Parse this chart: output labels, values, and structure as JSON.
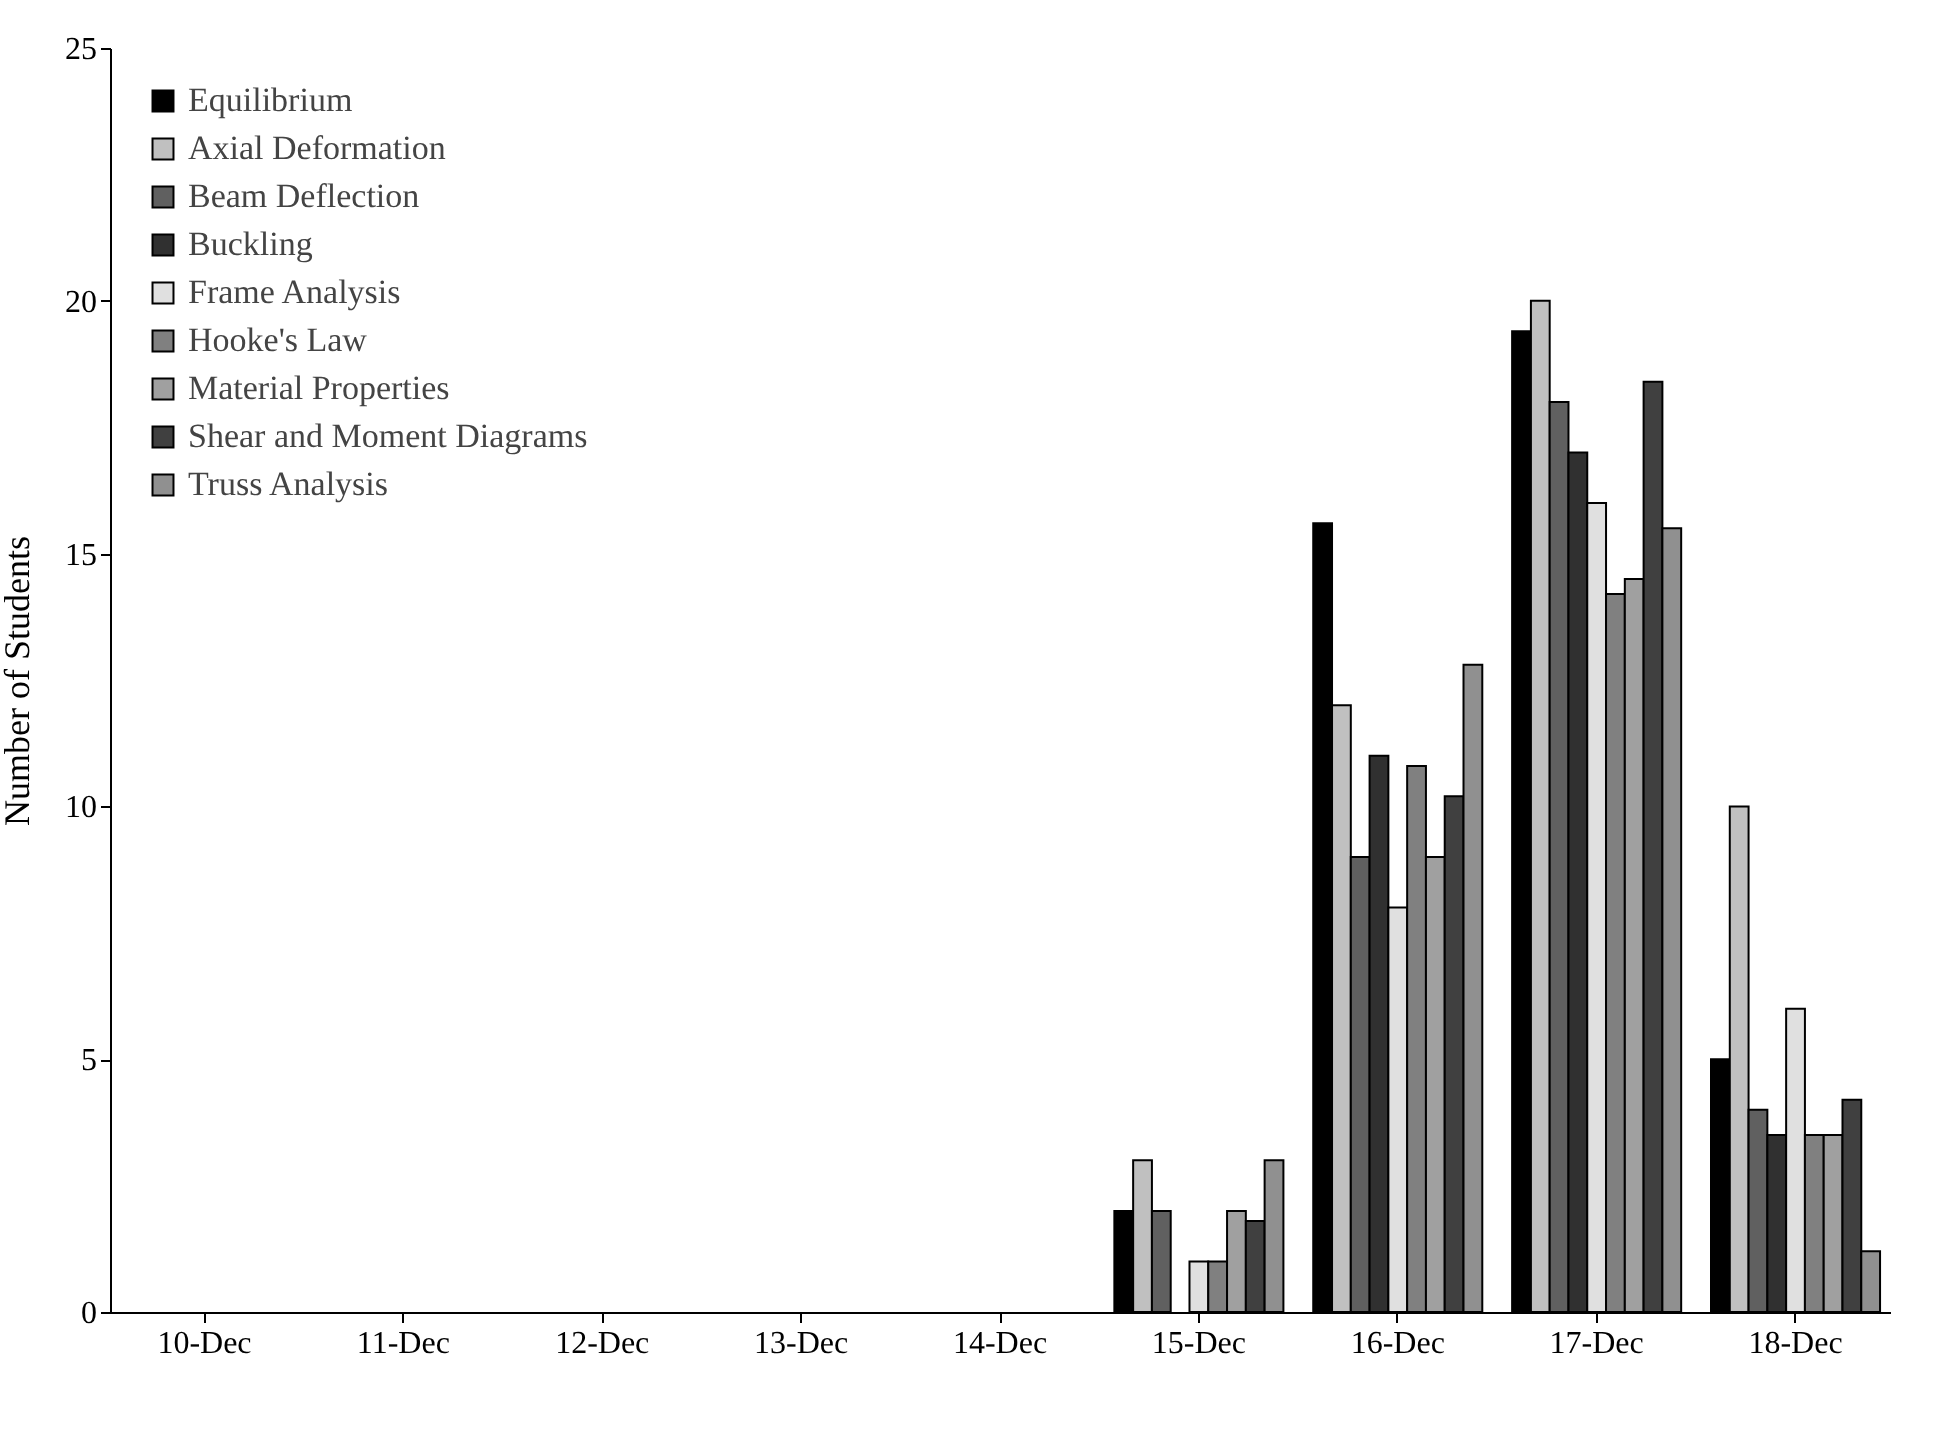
{
  "chart_data": {
    "type": "bar",
    "ylabel": "Number of Students",
    "categories": [
      "10-Dec",
      "11-Dec",
      "12-Dec",
      "13-Dec",
      "14-Dec",
      "15-Dec",
      "16-Dec",
      "17-Dec",
      "18-Dec"
    ],
    "series": [
      {
        "name": "Equilibrium",
        "color": "#000000",
        "values": [
          null,
          null,
          null,
          null,
          null,
          2,
          15.6,
          19.4,
          5
        ]
      },
      {
        "name": "Axial Deformation",
        "color": "#c0c0c0",
        "values": [
          null,
          null,
          null,
          null,
          null,
          3,
          12,
          20,
          10
        ]
      },
      {
        "name": "Beam Deflection",
        "color": "#606060",
        "values": [
          null,
          null,
          null,
          null,
          null,
          2,
          9,
          18,
          4
        ]
      },
      {
        "name": "Buckling",
        "color": "#303030",
        "values": [
          null,
          null,
          null,
          null,
          null,
          null,
          11,
          17,
          3.5
        ]
      },
      {
        "name": "Frame Analysis",
        "color": "#e0e0e0",
        "values": [
          null,
          null,
          null,
          null,
          null,
          1,
          8,
          16,
          6
        ]
      },
      {
        "name": "Hooke's Law",
        "color": "#808080",
        "values": [
          null,
          null,
          null,
          null,
          null,
          1,
          10.8,
          14.2,
          3.5
        ]
      },
      {
        "name": "Material Properties",
        "color": "#a0a0a0",
        "values": [
          null,
          null,
          null,
          null,
          null,
          2,
          9,
          14.5,
          3.5
        ]
      },
      {
        "name": "Shear and Moment Diagrams",
        "color": "#404040",
        "values": [
          null,
          null,
          null,
          null,
          null,
          1.8,
          10.2,
          18.4,
          4.2
        ]
      },
      {
        "name": "Truss Analysis",
        "color": "#909090",
        "values": [
          null,
          null,
          null,
          null,
          null,
          3,
          12.8,
          15.5,
          1.2
        ]
      }
    ],
    "ylim": [
      0,
      25
    ],
    "yticks": [
      0,
      5,
      10,
      15,
      20,
      25
    ],
    "grid": false,
    "legend": "top left"
  }
}
